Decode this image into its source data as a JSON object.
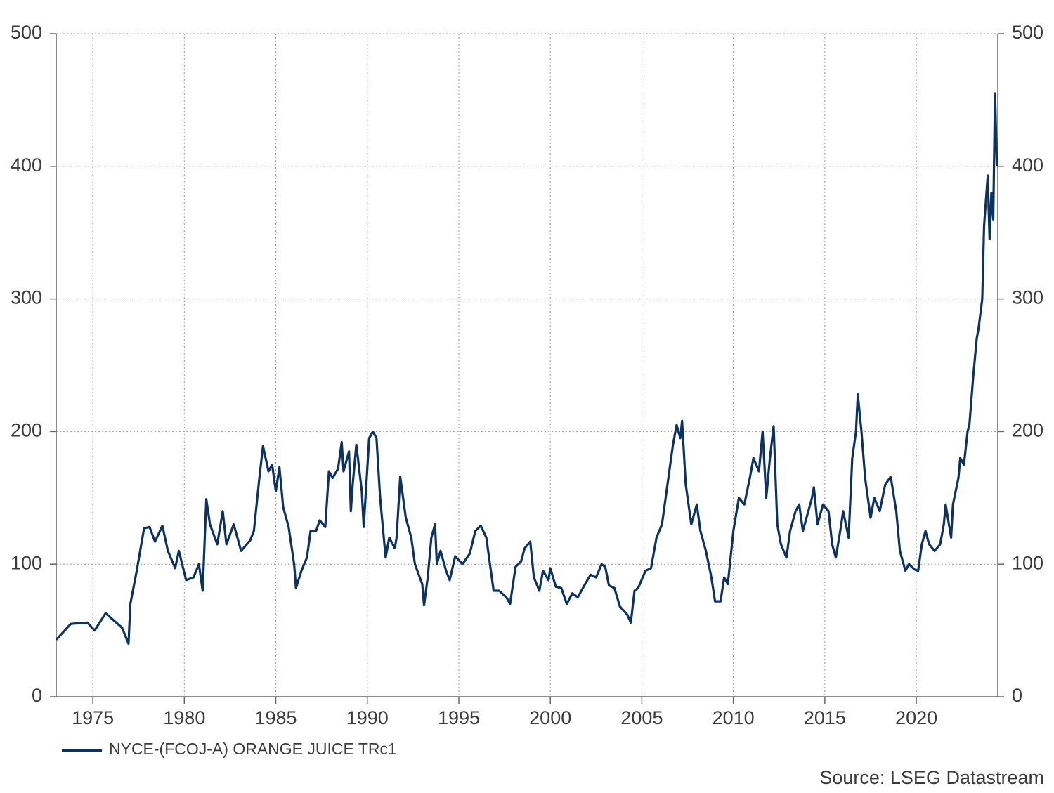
{
  "chart_data": {
    "type": "line",
    "xlim": [
      1973.0,
      2024.45
    ],
    "xticks": [
      1975,
      1980,
      1985,
      1990,
      1995,
      2000,
      2005,
      2010,
      2015,
      2020
    ],
    "ylim": [
      0,
      500
    ],
    "yticks": [
      0,
      100,
      200,
      300,
      400,
      500
    ],
    "grid": true,
    "legend": "bottom-left",
    "source": "Source: LSEG Datastream",
    "series": [
      {
        "name": "NYCE-(FCOJ-A) ORANGE JUICE TRc1",
        "color": "#0b3263",
        "x": [
          1973.0,
          1973.8,
          1974.7,
          1975.1,
          1975.7,
          1976.6,
          1976.95,
          1977.05,
          1977.4,
          1977.8,
          1978.1,
          1978.4,
          1978.8,
          1979.1,
          1979.5,
          1979.7,
          1980.1,
          1980.5,
          1980.8,
          1981.0,
          1981.2,
          1981.4,
          1981.8,
          1982.1,
          1982.3,
          1982.7,
          1983.1,
          1983.6,
          1983.8,
          1984.1,
          1984.3,
          1984.6,
          1984.8,
          1985.0,
          1985.2,
          1985.4,
          1985.7,
          1986.0,
          1986.1,
          1986.4,
          1986.7,
          1986.9,
          1987.2,
          1987.4,
          1987.7,
          1987.9,
          1988.1,
          1988.4,
          1988.6,
          1988.7,
          1989.0,
          1989.1,
          1989.2,
          1989.4,
          1989.7,
          1989.8,
          1990.1,
          1990.3,
          1990.5,
          1990.7,
          1991.0,
          1991.2,
          1991.5,
          1991.6,
          1991.8,
          1992.1,
          1992.4,
          1992.6,
          1993.0,
          1993.1,
          1993.3,
          1993.5,
          1993.7,
          1993.8,
          1994.0,
          1994.3,
          1994.5,
          1994.8,
          1995.2,
          1995.6,
          1995.9,
          1996.2,
          1996.5,
          1996.7,
          1996.9,
          1997.2,
          1997.6,
          1997.8,
          1998.1,
          1998.4,
          1998.6,
          1998.9,
          1999.1,
          1999.4,
          1999.6,
          1999.9,
          2000.0,
          2000.3,
          2000.6,
          2000.9,
          2001.2,
          2001.5,
          2001.9,
          2002.2,
          2002.5,
          2002.8,
          2003.0,
          2003.2,
          2003.5,
          2003.8,
          2004.2,
          2004.4,
          2004.6,
          2004.8,
          2005.2,
          2005.5,
          2005.8,
          2006.1,
          2006.4,
          2006.7,
          2006.9,
          2007.1,
          2007.2,
          2007.4,
          2007.7,
          2008.0,
          2008.2,
          2008.5,
          2008.8,
          2009.0,
          2009.3,
          2009.5,
          2009.7,
          2010.0,
          2010.3,
          2010.6,
          2010.9,
          2011.1,
          2011.4,
          2011.6,
          2011.8,
          2012.0,
          2012.2,
          2012.4,
          2012.6,
          2012.9,
          2013.1,
          2013.4,
          2013.6,
          2013.8,
          2014.0,
          2014.3,
          2014.4,
          2014.6,
          2014.9,
          2015.2,
          2015.4,
          2015.6,
          2015.9,
          2016.0,
          2016.3,
          2016.5,
          2016.7,
          2016.8,
          2017.0,
          2017.2,
          2017.5,
          2017.7,
          2018.0,
          2018.3,
          2018.6,
          2018.9,
          2019.1,
          2019.4,
          2019.6,
          2019.9,
          2020.1,
          2020.3,
          2020.5,
          2020.7,
          2021.0,
          2021.3,
          2021.5,
          2021.6,
          2021.9,
          2022.0,
          2022.3,
          2022.4,
          2022.6,
          2022.8,
          2022.9,
          2023.1,
          2023.3,
          2023.4,
          2023.6,
          2023.7,
          2023.9,
          2024.0,
          2024.1,
          2024.2,
          2024.3,
          2024.4
        ],
        "values": [
          43,
          55,
          56,
          50,
          63,
          52,
          40,
          70,
          95,
          127,
          128,
          117,
          129,
          110,
          97,
          110,
          88,
          90,
          100,
          80,
          149,
          130,
          115,
          140,
          115,
          130,
          110,
          118,
          125,
          165,
          189,
          170,
          175,
          155,
          173,
          143,
          128,
          100,
          82,
          95,
          105,
          125,
          125,
          133,
          128,
          170,
          165,
          172,
          192,
          170,
          185,
          140,
          160,
          190,
          155,
          128,
          195,
          200,
          195,
          150,
          105,
          120,
          112,
          120,
          166,
          135,
          120,
          100,
          85,
          69,
          90,
          120,
          130,
          100,
          110,
          95,
          88,
          106,
          100,
          108,
          125,
          129,
          120,
          100,
          80,
          80,
          75,
          70,
          98,
          102,
          112,
          117,
          90,
          80,
          95,
          88,
          97,
          83,
          82,
          70,
          78,
          75,
          85,
          92,
          90,
          100,
          98,
          84,
          82,
          68,
          62,
          56,
          80,
          82,
          95,
          97,
          120,
          130,
          160,
          190,
          205,
          195,
          208,
          160,
          130,
          145,
          125,
          110,
          90,
          72,
          72,
          90,
          85,
          125,
          150,
          145,
          165,
          180,
          170,
          200,
          150,
          180,
          204,
          130,
          115,
          105,
          125,
          140,
          145,
          125,
          135,
          150,
          158,
          130,
          145,
          140,
          115,
          105,
          130,
          140,
          120,
          180,
          200,
          228,
          200,
          165,
          135,
          150,
          140,
          160,
          166,
          140,
          110,
          95,
          100,
          96,
          95,
          115,
          125,
          115,
          110,
          115,
          130,
          145,
          120,
          145,
          165,
          180,
          175,
          200,
          205,
          240,
          270,
          278,
          300,
          355,
          393,
          345,
          380,
          360,
          455,
          400
        ]
      }
    ]
  }
}
